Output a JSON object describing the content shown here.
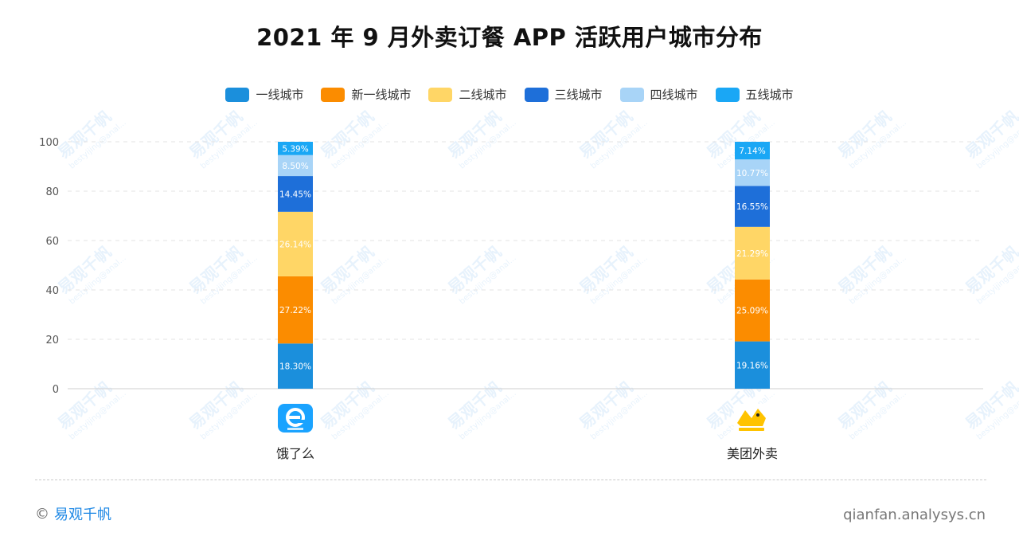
{
  "chart_data": {
    "type": "bar",
    "stacked": true,
    "title": "2021 年 9 月外卖订餐 APP 活跃用户城市分布",
    "categories": [
      "饿了么",
      "美团外卖"
    ],
    "series": [
      {
        "name": "一线城市",
        "color": "#1b8fdc",
        "values": [
          18.3,
          19.16
        ],
        "labels": [
          "18.30%",
          "19.16%"
        ]
      },
      {
        "name": "新一线城市",
        "color": "#fb8c00",
        "values": [
          27.22,
          25.09
        ],
        "labels": [
          "27.22%",
          "25.09%"
        ]
      },
      {
        "name": "二线城市",
        "color": "#ffd666",
        "values": [
          26.14,
          21.29
        ],
        "labels": [
          "26.14%",
          "21.29%"
        ]
      },
      {
        "name": "三线城市",
        "color": "#1e6fd9",
        "values": [
          14.45,
          16.55
        ],
        "labels": [
          "14.45%",
          "16.55%"
        ]
      },
      {
        "name": "四线城市",
        "color": "#a8d4f7",
        "values": [
          8.5,
          10.77
        ],
        "labels": [
          "8.50%",
          "10.77%"
        ]
      },
      {
        "name": "五线城市",
        "color": "#1aa7f5",
        "values": [
          5.39,
          7.14
        ],
        "labels": [
          "5.39%",
          "7.14%"
        ]
      }
    ],
    "ylim": [
      0,
      100
    ],
    "yticks": [
      0,
      20,
      40,
      60,
      80,
      100
    ],
    "grid": true,
    "legend_position": "top"
  },
  "footer": {
    "copyright_symbol": "©",
    "brand": "易观千帆",
    "url": "qianfan.analysys.cn"
  },
  "watermark": {
    "text": "易观千帆",
    "sub": "bestyijing@anal..."
  },
  "icons": {
    "eleme": "eleme-logo-icon",
    "meituan": "meituan-logo-icon"
  }
}
